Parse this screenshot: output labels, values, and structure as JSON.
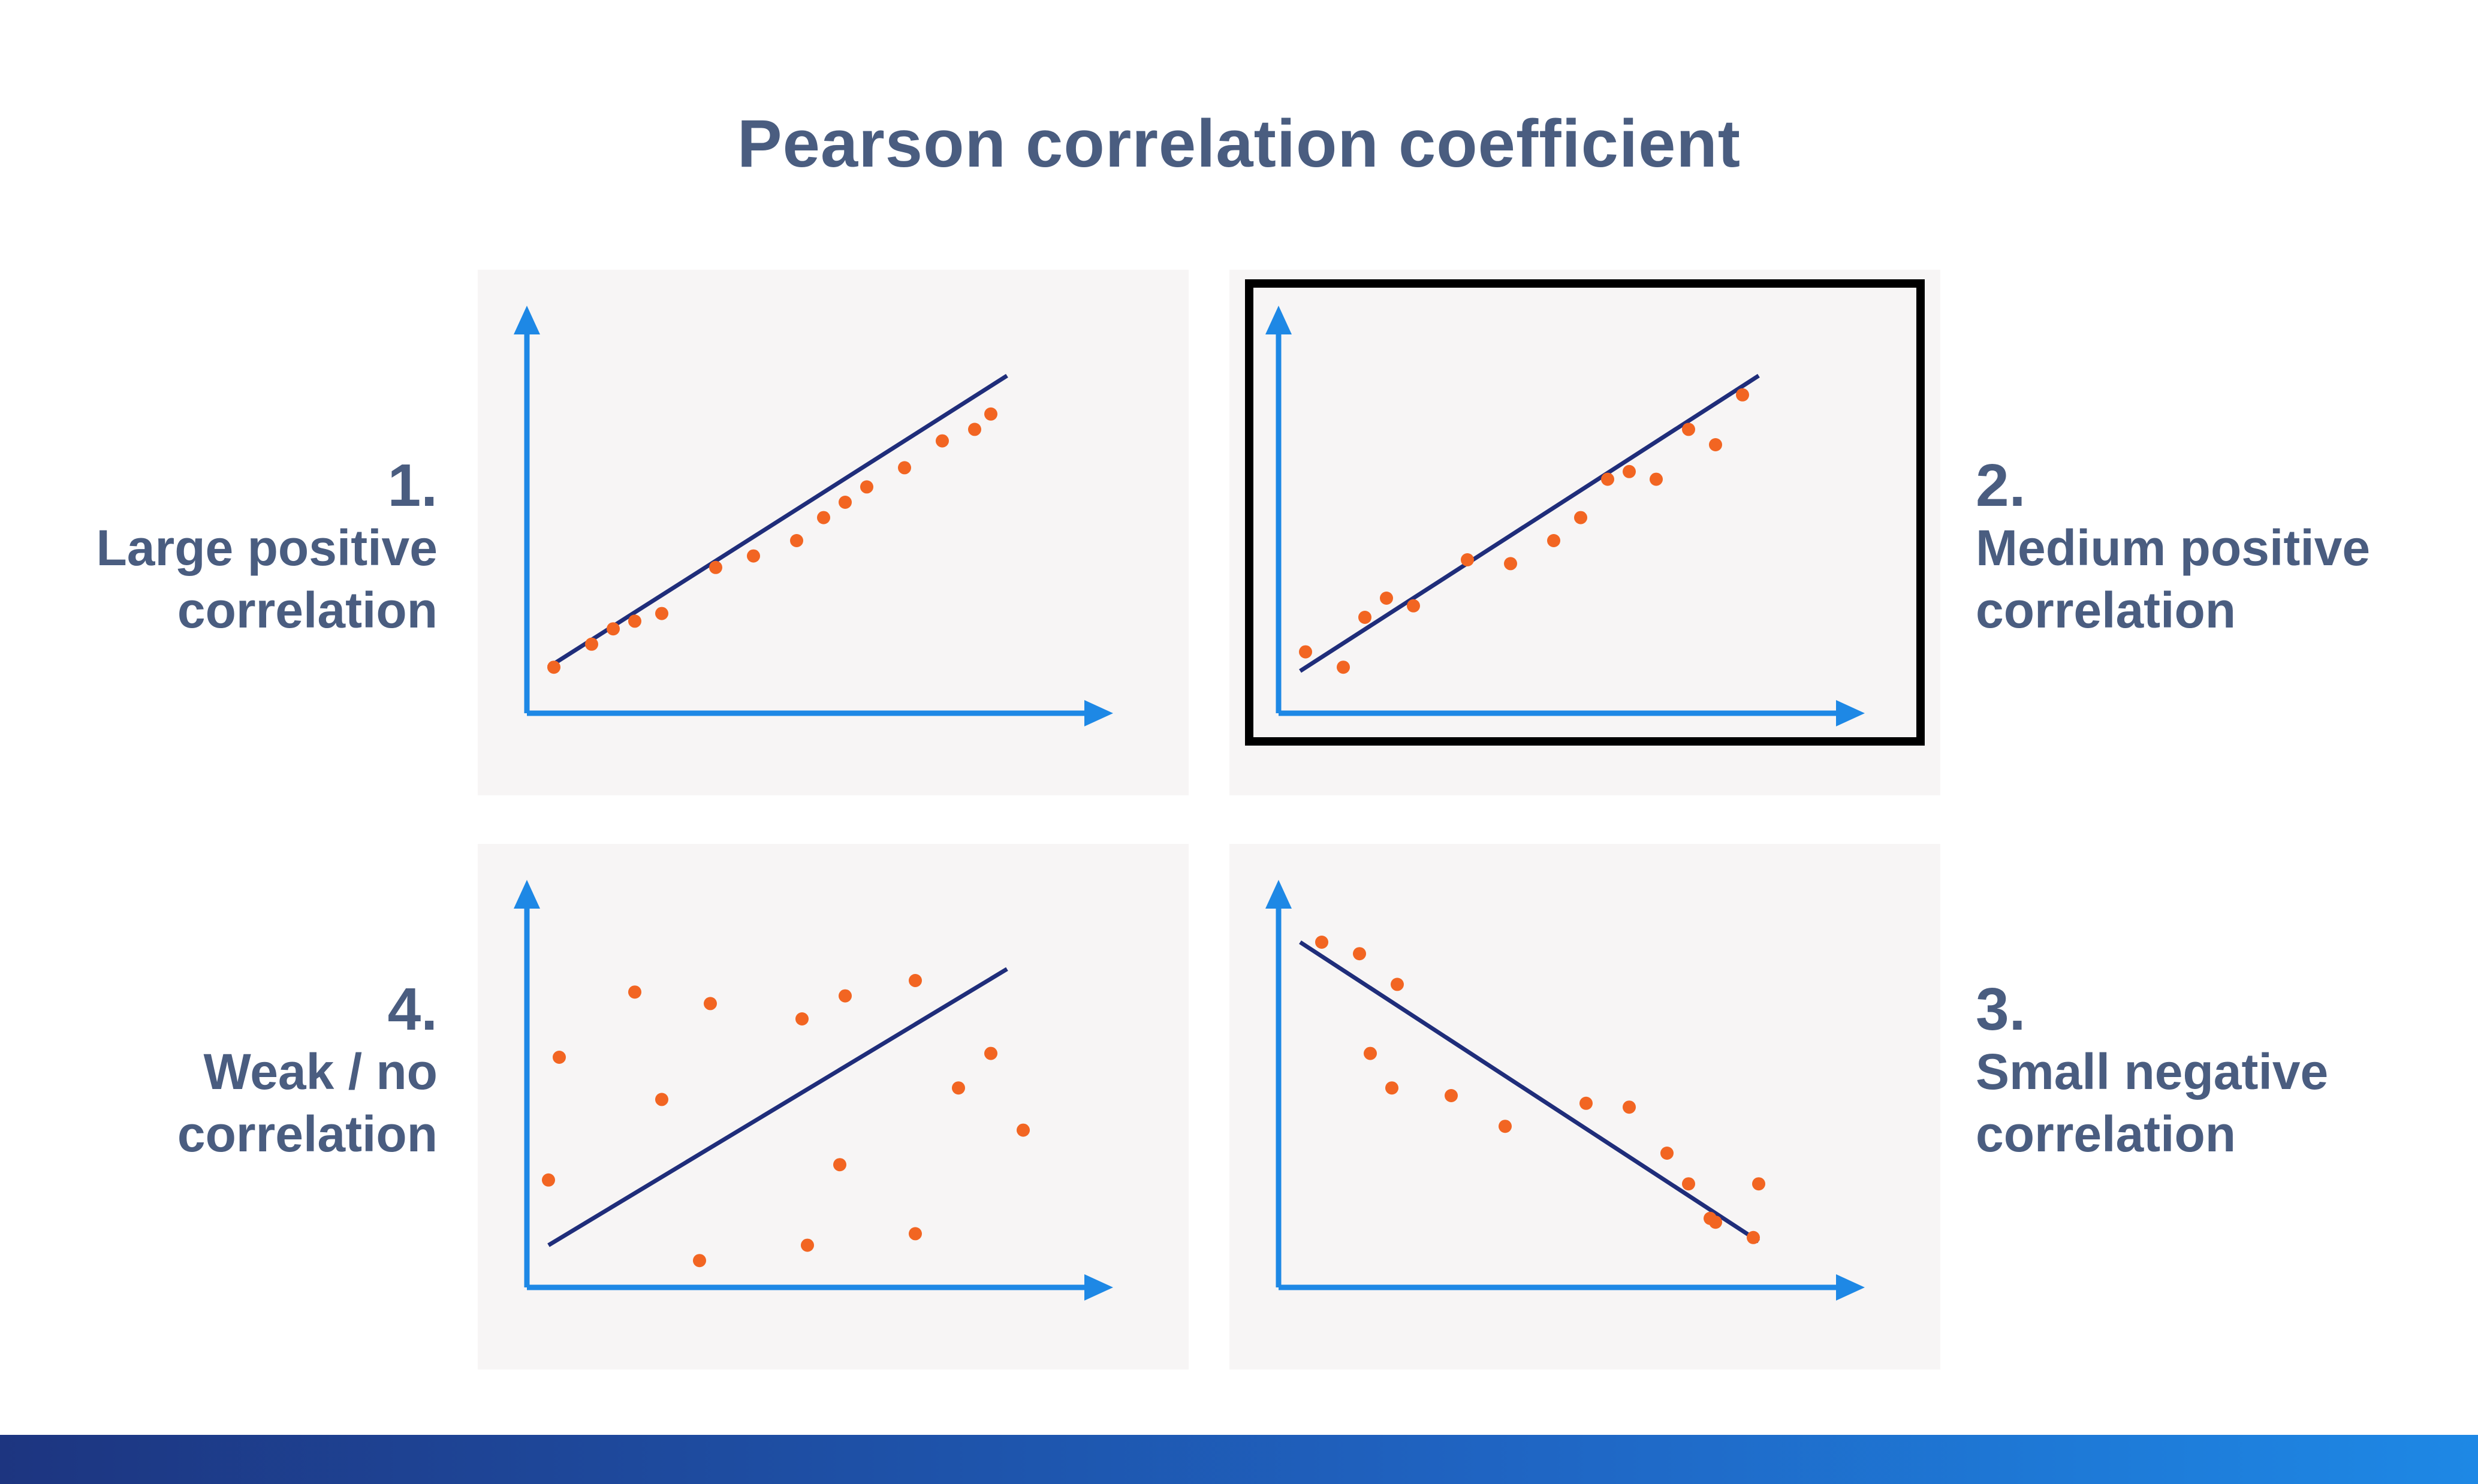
{
  "title": "Pearson correlation coefficient",
  "colors": {
    "title": "#4a5d80",
    "axis": "#1e88e5",
    "fit_line": "#1f2d7a",
    "point": "#f26522",
    "panel_bg": "#f7f5f5",
    "selection_border": "#000000"
  },
  "panels": [
    {
      "number": "1.",
      "label_line1": "Large positive",
      "label_line2": "correlation",
      "selected": false,
      "chart_data": {
        "type": "scatter",
        "xlim": [
          0,
          100
        ],
        "ylim": [
          0,
          100
        ],
        "fit_line": [
          [
            4,
            12
          ],
          [
            89,
            88
          ]
        ],
        "points": [
          [
            5,
            12
          ],
          [
            12,
            18
          ],
          [
            16,
            22
          ],
          [
            20,
            24
          ],
          [
            25,
            26
          ],
          [
            35,
            38
          ],
          [
            42,
            41
          ],
          [
            50,
            45
          ],
          [
            55,
            51
          ],
          [
            59,
            55
          ],
          [
            63,
            59
          ],
          [
            70,
            64
          ],
          [
            77,
            71
          ],
          [
            83,
            74
          ],
          [
            86,
            78
          ]
        ]
      }
    },
    {
      "number": "2.",
      "label_line1": "Medium positive",
      "label_line2": "correlation",
      "selected": true,
      "chart_data": {
        "type": "scatter",
        "xlim": [
          0,
          100
        ],
        "ylim": [
          0,
          100
        ],
        "fit_line": [
          [
            4,
            11
          ],
          [
            89,
            88
          ]
        ],
        "points": [
          [
            5,
            16
          ],
          [
            12,
            12
          ],
          [
            16,
            25
          ],
          [
            20,
            30
          ],
          [
            25,
            28
          ],
          [
            35,
            40
          ],
          [
            43,
            39
          ],
          [
            51,
            45
          ],
          [
            56,
            51
          ],
          [
            61,
            61
          ],
          [
            65,
            63
          ],
          [
            70,
            61
          ],
          [
            76,
            74
          ],
          [
            81,
            70
          ],
          [
            86,
            83
          ]
        ]
      }
    },
    {
      "number": "3.",
      "label_line1": "Small negative",
      "label_line2": "correlation",
      "selected": false,
      "chart_data": {
        "type": "scatter",
        "xlim": [
          0,
          100
        ],
        "ylim": [
          0,
          100
        ],
        "fit_line": [
          [
            4,
            90
          ],
          [
            89,
            12
          ]
        ],
        "points": [
          [
            8,
            90
          ],
          [
            15,
            87
          ],
          [
            22,
            79
          ],
          [
            17,
            61
          ],
          [
            21,
            52
          ],
          [
            32,
            50
          ],
          [
            42,
            42
          ],
          [
            57,
            48
          ],
          [
            65,
            47
          ],
          [
            72,
            35
          ],
          [
            76,
            27
          ],
          [
            80,
            18
          ],
          [
            81,
            17
          ],
          [
            88,
            13
          ],
          [
            89,
            27
          ]
        ]
      }
    },
    {
      "number": "4.",
      "label_line1": "Weak / no",
      "label_line2": "correlation",
      "selected": false,
      "chart_data": {
        "type": "scatter",
        "xlim": [
          0,
          100
        ],
        "ylim": [
          0,
          100
        ],
        "fit_line": [
          [
            4,
            11
          ],
          [
            89,
            83
          ]
        ],
        "points": [
          [
            6,
            60
          ],
          [
            4,
            28
          ],
          [
            20,
            77
          ],
          [
            25,
            49
          ],
          [
            34,
            74
          ],
          [
            51,
            70
          ],
          [
            59,
            76
          ],
          [
            72,
            80
          ],
          [
            86,
            61
          ],
          [
            80,
            52
          ],
          [
            92,
            41
          ],
          [
            58,
            32
          ],
          [
            32,
            7
          ],
          [
            52,
            11
          ],
          [
            72,
            14
          ]
        ]
      }
    }
  ]
}
